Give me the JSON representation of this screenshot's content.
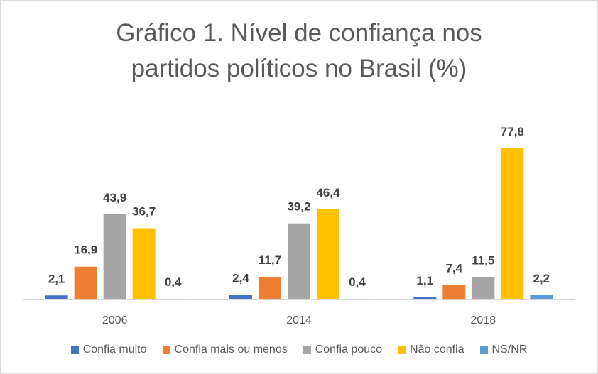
{
  "chart_data": {
    "type": "bar",
    "title": "Gráfico 1. Nível de confiança nos partidos políticos no Brasil (%)",
    "title_lines": [
      "Gráfico 1. Nível de confiança nos",
      "partidos políticos no Brasil (%)"
    ],
    "categories": [
      "2006",
      "2014",
      "2018"
    ],
    "series": [
      {
        "name": "Confia muito",
        "color": "#4472c4",
        "values": [
          2.1,
          2.4,
          1.1
        ],
        "labels": [
          "2,1",
          "2,4",
          "1,1"
        ]
      },
      {
        "name": "Confia mais ou menos",
        "color": "#ed7d31",
        "values": [
          16.9,
          11.7,
          7.4
        ],
        "labels": [
          "16,9",
          "11,7",
          "7,4"
        ]
      },
      {
        "name": "Confia pouco",
        "color": "#a5a5a5",
        "values": [
          43.9,
          39.2,
          11.5
        ],
        "labels": [
          "43,9",
          "39,2",
          "11,5"
        ]
      },
      {
        "name": "Não confia",
        "color": "#ffc000",
        "values": [
          36.7,
          46.4,
          77.8
        ],
        "labels": [
          "36,7",
          "46,4",
          "77,8"
        ]
      },
      {
        "name": "NS/NR",
        "color": "#5b9bd5",
        "values": [
          0.4,
          0.4,
          2.2
        ],
        "labels": [
          "0,4",
          "0,4",
          "2,2"
        ]
      }
    ],
    "ylim": [
      0,
      80
    ],
    "grid": false,
    "legend_position": "bottom"
  }
}
